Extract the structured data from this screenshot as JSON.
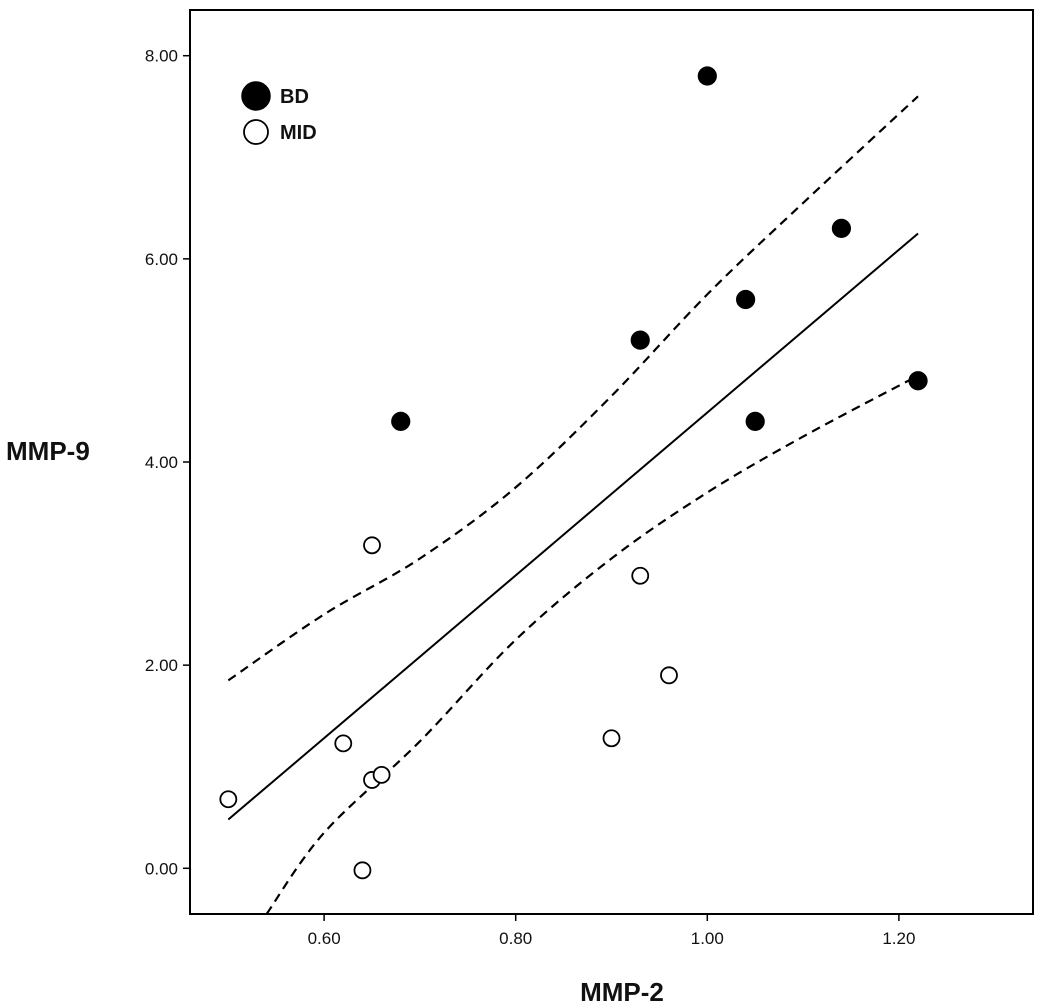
{
  "chart_data": {
    "type": "scatter",
    "title": "",
    "xlabel": "MMP-2",
    "ylabel": "MMP-9",
    "xlim": [
      0.46,
      1.34
    ],
    "ylim": [
      -0.45,
      8.45
    ],
    "xticks": [
      0.6,
      0.8,
      1.0,
      1.2
    ],
    "xtick_labels": [
      "0.60",
      "0.80",
      "1.00",
      "1.20"
    ],
    "yticks": [
      0,
      2,
      4,
      6,
      8
    ],
    "ytick_labels": [
      "0.00",
      "2.00",
      "4.00",
      "6.00",
      "8.00"
    ],
    "grid": false,
    "legend": {
      "position": "top-left",
      "entries": [
        {
          "label": "BD",
          "marker": "filled-circle"
        },
        {
          "label": "MID",
          "marker": "open-circle"
        }
      ]
    },
    "series": [
      {
        "name": "BD",
        "marker": "filled",
        "points": [
          {
            "x": 0.68,
            "y": 4.4
          },
          {
            "x": 0.93,
            "y": 5.2
          },
          {
            "x": 1.0,
            "y": 7.8
          },
          {
            "x": 1.04,
            "y": 5.6
          },
          {
            "x": 1.05,
            "y": 4.4
          },
          {
            "x": 1.14,
            "y": 6.3
          },
          {
            "x": 1.22,
            "y": 4.8
          }
        ]
      },
      {
        "name": "MID",
        "marker": "open",
        "points": [
          {
            "x": 0.5,
            "y": 0.68
          },
          {
            "x": 0.62,
            "y": 1.23
          },
          {
            "x": 0.64,
            "y": -0.02
          },
          {
            "x": 0.65,
            "y": 3.18
          },
          {
            "x": 0.65,
            "y": 0.87
          },
          {
            "x": 0.66,
            "y": 0.92
          },
          {
            "x": 0.9,
            "y": 1.28
          },
          {
            "x": 0.93,
            "y": 2.88
          },
          {
            "x": 0.96,
            "y": 1.9
          }
        ]
      }
    ],
    "fit_line": {
      "name": "regression",
      "style": "solid",
      "x": [
        0.5,
        1.22
      ],
      "y": [
        0.48,
        6.25
      ]
    },
    "confidence_bands": [
      {
        "name": "upper-95",
        "style": "dashed",
        "x": [
          0.5,
          0.6,
          0.7,
          0.8,
          0.9,
          1.0,
          1.1,
          1.22
        ],
        "y": [
          1.85,
          2.5,
          3.05,
          3.75,
          4.65,
          5.65,
          6.55,
          7.6
        ]
      },
      {
        "name": "lower-95",
        "style": "dashed",
        "x": [
          0.54,
          0.6,
          0.7,
          0.8,
          0.9,
          1.0,
          1.1,
          1.22
        ],
        "y": [
          -0.45,
          0.35,
          1.25,
          2.25,
          3.05,
          3.7,
          4.25,
          4.85
        ]
      }
    ]
  }
}
